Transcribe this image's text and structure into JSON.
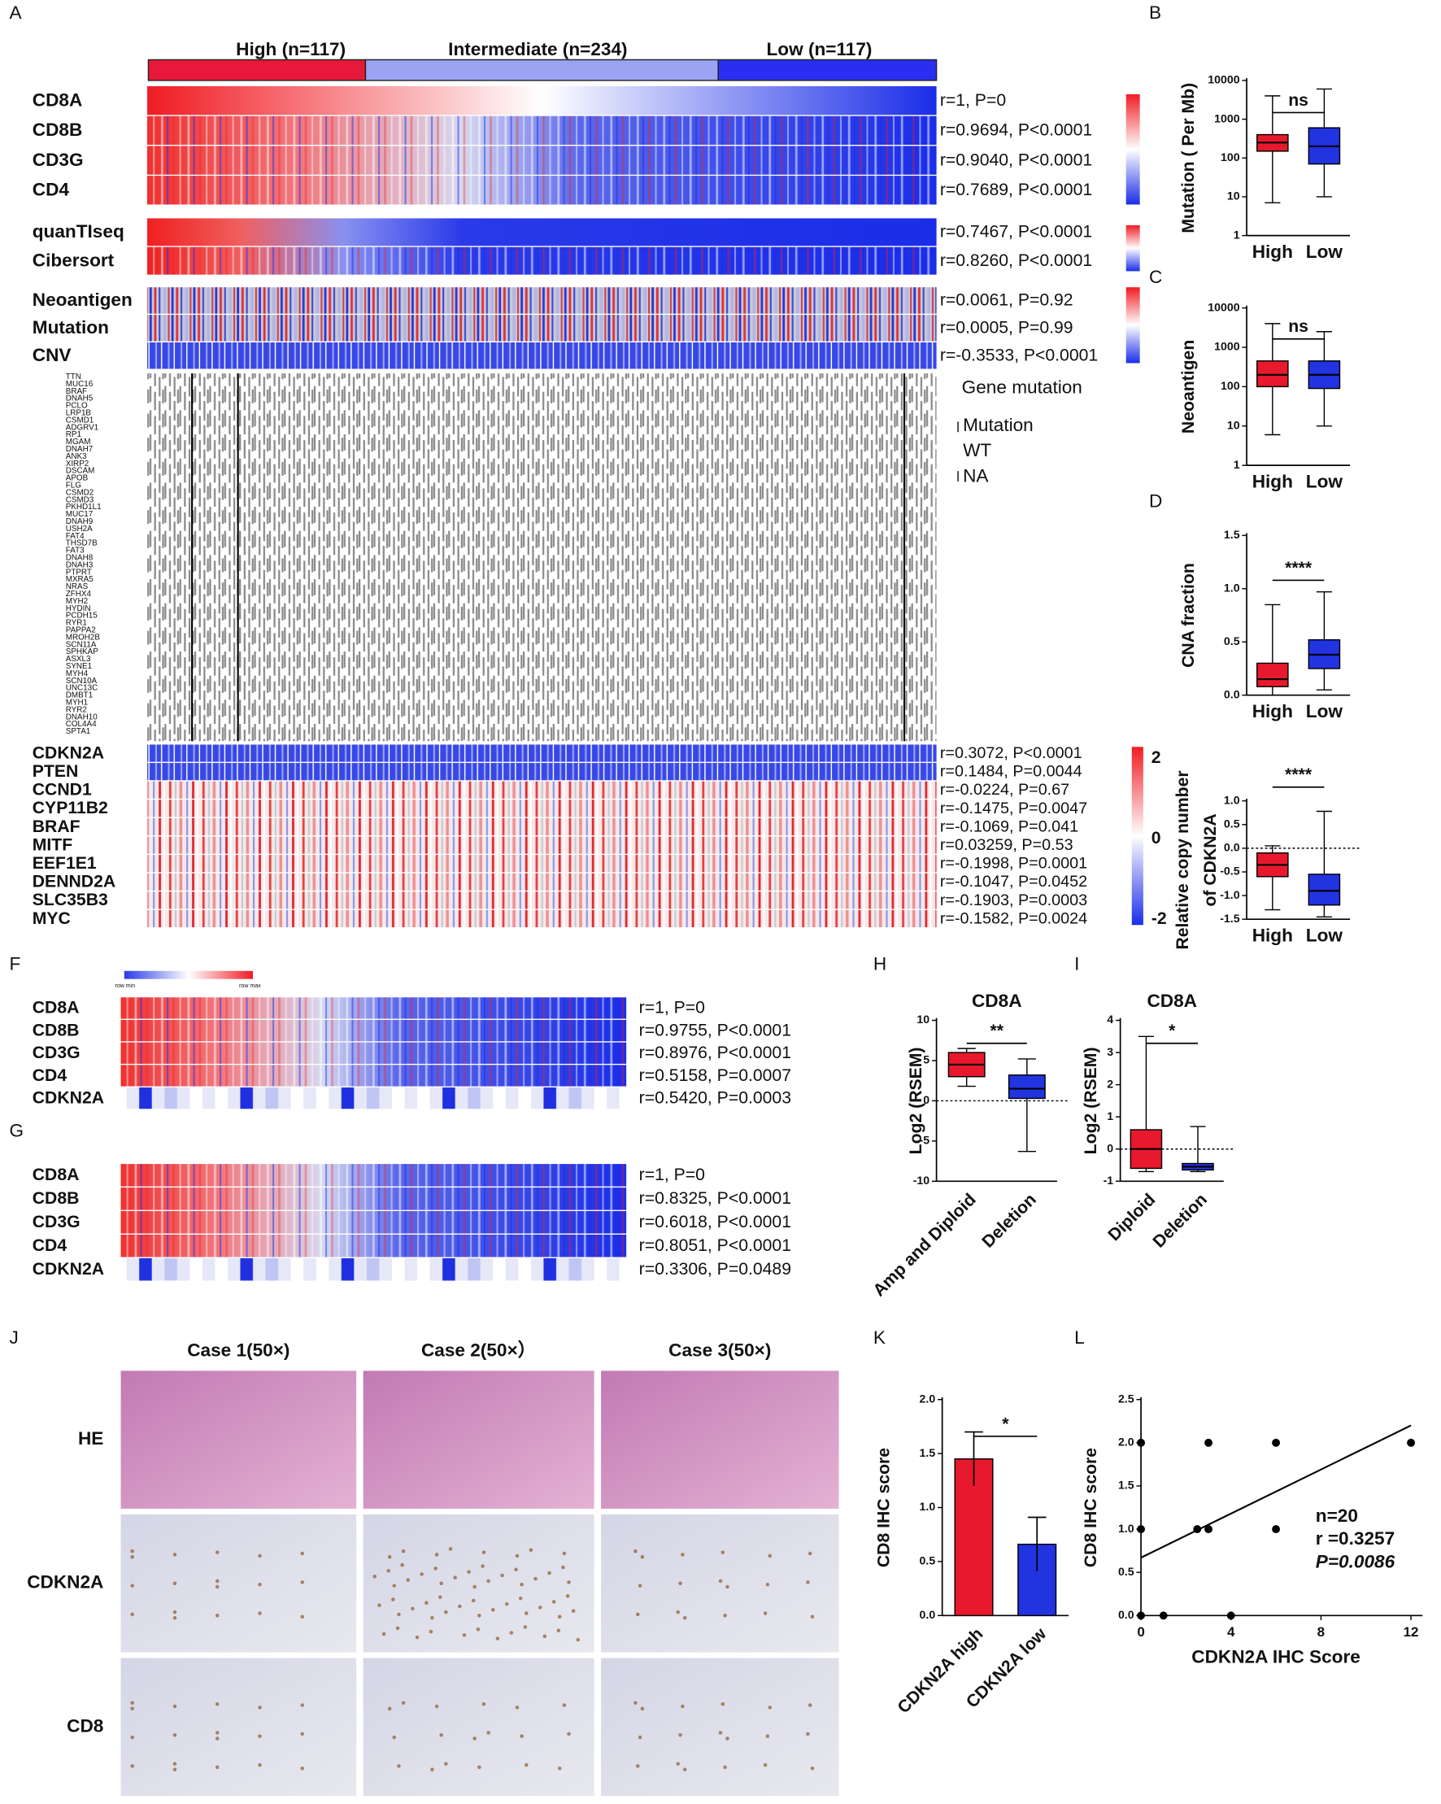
{
  "panel_labels": [
    "A",
    "B",
    "C",
    "D",
    "F",
    "G",
    "H",
    "I",
    "J",
    "K",
    "L"
  ],
  "heatmap_A": {
    "groups": [
      "High (n=117)",
      "Intermediate (n=234)",
      "Low (n=117)"
    ],
    "expression_rows": [
      {
        "label": "CD8A",
        "stat": "r=1, P=0"
      },
      {
        "label": "CD8B",
        "stat": "r=0.9694,  P<0.0001"
      },
      {
        "label": "CD3G",
        "stat": "r=0.9040,  P<0.0001"
      },
      {
        "label": "CD4",
        "stat": "r=0.7689,  P<0.0001"
      }
    ],
    "score_rows": [
      {
        "label": "quanTIseq",
        "stat": "r=0.7467, P<0.0001"
      },
      {
        "label": "Cibersort",
        "stat": "r=0.8260, P<0.0001"
      }
    ],
    "genomic_rows": [
      {
        "label": "Neoantigen",
        "stat": "r=0.0061, P=0.92"
      },
      {
        "label": "Mutation",
        "stat": "r=0.0005, P=0.99"
      },
      {
        "label": "CNV",
        "stat": "r=-0.3533, P<0.0001"
      }
    ],
    "genes": [
      "TTN",
      "MUC16",
      "BRAF",
      "DNAH5",
      "PCLO",
      "LRP1B",
      "CSMD1",
      "ADGRV1",
      "RP1",
      "MGAM",
      "DNAH7",
      "ANK3",
      "XIRP2",
      "DSCAM",
      "APOB",
      "FLG",
      "CSMD2",
      "CSMD3",
      "PKHD1L1",
      "MUC17",
      "DNAH9",
      "USH2A",
      "FAT4",
      "THSD7B",
      "FAT3",
      "DNAH8",
      "DNAH3",
      "PTPRT",
      "MXRA5",
      "NRAS",
      "ZFHX4",
      "MYH2",
      "HYDIN",
      "PCDH15",
      "RYR1",
      "PAPPA2",
      "MROH2B",
      "SCN11A",
      "SPHKAP",
      "ASXL3",
      "SYNE1",
      "MYH4",
      "SCN10A",
      "UNC13C",
      "DMBT1",
      "MYH1",
      "RYR2",
      "DNAH10",
      "COL4A4",
      "SPTA1"
    ],
    "legend_title": "Gene mutation",
    "legend_items": [
      "Mutation",
      "WT",
      "NA"
    ],
    "cnv_rows": [
      {
        "label": "CDKN2A",
        "stat": "r=0.3072,  P<0.0001"
      },
      {
        "label": "PTEN",
        "stat": "r=0.1484,  P=0.0044"
      },
      {
        "label": "CCND1",
        "stat": "r=-0.0224,  P=0.67"
      },
      {
        "label": "CYP11B2",
        "stat": "r=-0.1475,  P=0.0047"
      },
      {
        "label": "BRAF",
        "stat": "r=-0.1069,  P=0.041"
      },
      {
        "label": "MITF",
        "stat": "r=0.03259,  P=0.53"
      },
      {
        "label": "EEF1E1",
        "stat": "r=-0.1998,  P=0.0001"
      },
      {
        "label": "DENND2A",
        "stat": "r=-0.1047,  P=0.0452"
      },
      {
        "label": "SLC35B3",
        "stat": "r=-0.1903,  P=0.0003"
      },
      {
        "label": "MYC",
        "stat": "r=-0.1582,  P=0.0024"
      }
    ],
    "cnv_colorbar": [
      "2",
      "0",
      "-2"
    ]
  },
  "heatmap_F": {
    "legend": [
      "row min",
      "row max"
    ],
    "rows": [
      {
        "label": "CD8A",
        "stat": "r=1, P=0"
      },
      {
        "label": "CD8B",
        "stat": "r=0.9755, P<0.0001"
      },
      {
        "label": "CD3G",
        "stat": "r=0.8976, P<0.0001"
      },
      {
        "label": "CD4",
        "stat": "r=0.5158, P=0.0007"
      },
      {
        "label": "CDKN2A",
        "stat": "r=0.5420, P=0.0003"
      }
    ]
  },
  "heatmap_G": {
    "rows": [
      {
        "label": "CD8A",
        "stat": "r=1, P=0"
      },
      {
        "label": "CD8B",
        "stat": "r=0.8325, P<0.0001"
      },
      {
        "label": "CD3G",
        "stat": "r=0.6018, P<0.0001"
      },
      {
        "label": "CD4",
        "stat": "r=0.8051, P<0.0001"
      },
      {
        "label": "CDKN2A",
        "stat": "r=0.3306, P=0.0489"
      }
    ]
  },
  "ihc": {
    "columns": [
      "Case 1(50×)",
      "Case 2(50×）",
      "Case 3(50×)"
    ],
    "rows": [
      "HE",
      "CDKN2A",
      "CD8"
    ]
  },
  "chart_data": [
    {
      "type": "box",
      "ylabel": [
        "Mutation ( Per Mb)"
      ],
      "categories": [
        "High",
        "Low"
      ],
      "colors": [
        "#e8192c",
        "#2233e0"
      ],
      "boxes": [
        {
          "min": 7,
          "q1": 150,
          "median": 250,
          "q3": 400,
          "max": 4000
        },
        {
          "min": 10,
          "q1": 70,
          "median": 200,
          "q3": 600,
          "max": 6000
        }
      ],
      "log": true,
      "ylim": [
        1,
        10000
      ],
      "yticks": [
        1,
        10,
        100,
        1000,
        10000
      ],
      "annotation": "ns"
    },
    {
      "type": "box",
      "ylabel": [
        "Neoantigen"
      ],
      "categories": [
        "High",
        "Low"
      ],
      "colors": [
        "#e8192c",
        "#2233e0"
      ],
      "boxes": [
        {
          "min": 6,
          "q1": 100,
          "median": 200,
          "q3": 450,
          "max": 4000
        },
        {
          "min": 10,
          "q1": 90,
          "median": 200,
          "q3": 450,
          "max": 2500
        }
      ],
      "log": true,
      "ylim": [
        1,
        10000
      ],
      "yticks": [
        1,
        10,
        100,
        1000,
        10000
      ],
      "annotation": "ns"
    },
    {
      "type": "box",
      "ylabel": [
        "CNA fraction"
      ],
      "categories": [
        "High",
        "Low"
      ],
      "colors": [
        "#e8192c",
        "#2233e0"
      ],
      "boxes": [
        {
          "min": 0,
          "q1": 0.08,
          "median": 0.15,
          "q3": 0.3,
          "max": 0.85
        },
        {
          "min": 0.05,
          "q1": 0.25,
          "median": 0.38,
          "q3": 0.52,
          "max": 0.97
        }
      ],
      "ylim": [
        0,
        1.5
      ],
      "yticks": [
        {
          "value": 0,
          "label": "0.0"
        },
        {
          "value": 0.5,
          "label": "0.5"
        },
        {
          "value": 1,
          "label": "1.0"
        },
        {
          "value": 1.5,
          "label": "1.5"
        }
      ],
      "annotation": "****"
    },
    {
      "type": "box",
      "ylabel": [
        "Relative copy number",
        "of CDKN2A"
      ],
      "categories": [
        "High",
        "Low"
      ],
      "colors": [
        "#e8192c",
        "#2233e0"
      ],
      "boxes": [
        {
          "min": -1.3,
          "q1": -0.6,
          "median": -0.35,
          "q3": -0.1,
          "max": 0.05
        },
        {
          "min": -1.45,
          "q1": -1.2,
          "median": -0.9,
          "q3": -0.55,
          "max": 0.78
        }
      ],
      "ylim": [
        -1.5,
        1
      ],
      "yticks": [
        {
          "value": 1,
          "label": "1.0"
        },
        {
          "value": 0.5,
          "label": "0.5"
        },
        {
          "value": 0,
          "label": "0.0"
        },
        {
          "value": -0.5,
          "label": "-0.5"
        },
        {
          "value": -1,
          "label": "-1.0"
        },
        {
          "value": -1.5,
          "label": "-1.5"
        }
      ],
      "annotation": "****",
      "zero_line": true
    },
    {
      "type": "box",
      "title": "CD8A",
      "ylabel": [
        "Log2 (RSEM)"
      ],
      "categories": [
        "Amp and Diploid",
        "Deletion"
      ],
      "colors": [
        "#e8192c",
        "#2233e0"
      ],
      "boxes": [
        {
          "min": 1.8,
          "q1": 3,
          "median": 4.5,
          "q3": 6,
          "max": 6.5
        },
        {
          "min": -6.3,
          "q1": 0.3,
          "median": 1.5,
          "q3": 3.2,
          "max": 5.2
        }
      ],
      "ylim": [
        -10,
        10
      ],
      "yticks": [
        -10,
        -5,
        0,
        5,
        10
      ],
      "annotation": "**",
      "zero_line": true,
      "rotate_labels": true
    },
    {
      "type": "box",
      "title": "CD8A",
      "ylabel": [
        "Log2 (RSEM)"
      ],
      "categories": [
        "Diploid",
        "Deletion"
      ],
      "colors": [
        "#e8192c",
        "#2233e0"
      ],
      "boxes": [
        {
          "min": -0.7,
          "q1": -0.6,
          "median": 0,
          "q3": 0.6,
          "max": 3.5
        },
        {
          "min": -0.7,
          "q1": -0.65,
          "median": -0.55,
          "q3": -0.45,
          "max": 0.7
        }
      ],
      "ylim": [
        -1,
        4
      ],
      "yticks": [
        -1,
        0,
        1,
        2,
        3,
        4
      ],
      "annotation": "*",
      "zero_line": true,
      "rotate_labels": true
    },
    {
      "type": "bar",
      "ylabel": [
        "CD8 IHC score"
      ],
      "categories": [
        "CDKN2A high",
        "CDKN2A low"
      ],
      "colors": [
        "#e8192c",
        "#2233e0"
      ],
      "values": [
        1.45,
        0.66
      ],
      "errors": [
        0.25,
        0.25
      ],
      "ylim": [
        0,
        2
      ],
      "yticks": [
        {
          "value": 0,
          "label": "0.0"
        },
        {
          "value": 0.5,
          "label": "0.5"
        },
        {
          "value": 1,
          "label": "1.0"
        },
        {
          "value": 1.5,
          "label": "1.5"
        },
        {
          "value": 2,
          "label": "2.0"
        }
      ],
      "annotation": "*",
      "rotate_labels": true
    },
    {
      "type": "scatter",
      "xlabel": "CDKN2A IHC Score",
      "ylabel": [
        "CD8 IHC score"
      ],
      "x": [
        0,
        0,
        0,
        1,
        2.5,
        3,
        3,
        4,
        6,
        6,
        12
      ],
      "y": [
        2,
        1,
        0,
        0,
        1,
        2,
        1,
        0,
        2,
        1,
        2
      ],
      "fit": {
        "x": [
          0,
          12
        ],
        "y": [
          0.67,
          2.2
        ]
      },
      "xlim": [
        0,
        12
      ],
      "xticks": [
        0,
        4,
        8,
        12
      ],
      "ylim": [
        0,
        2.5
      ],
      "yticks": [
        {
          "value": 0,
          "label": "0.0"
        },
        {
          "value": 0.5,
          "label": "0.5"
        },
        {
          "value": 1,
          "label": "1.0"
        },
        {
          "value": 1.5,
          "label": "1.5"
        },
        {
          "value": 2,
          "label": "2.0"
        },
        {
          "value": 2.5,
          "label": "2.5"
        }
      ],
      "annotations": [
        "n=20",
        "r =0.3257",
        "P=0.0086"
      ]
    }
  ]
}
